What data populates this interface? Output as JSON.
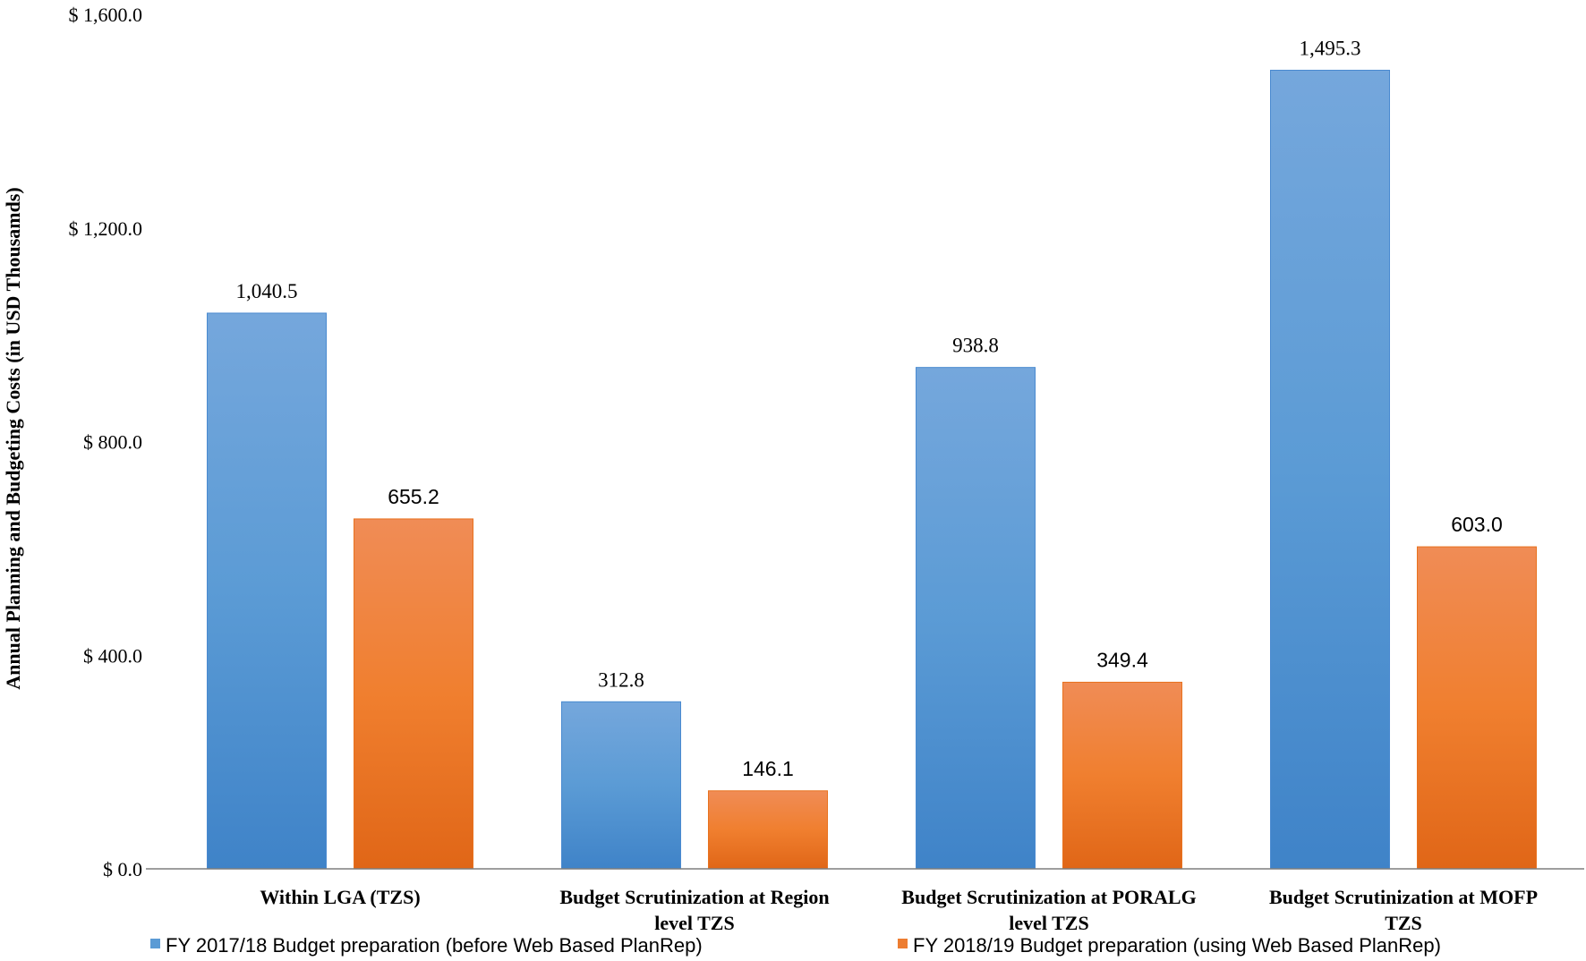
{
  "chart_data": {
    "type": "bar",
    "title": "",
    "xlabel": "",
    "ylabel": "Annual Planning and Budgeting Costs (in USD Thousamds)",
    "ylim": [
      0,
      1600
    ],
    "yticks": [
      0,
      400,
      800,
      1200,
      1600
    ],
    "ytick_labels": [
      "$ 0.0",
      "$ 400.0",
      "$ 800.0",
      "$ 1,200.0",
      "$ 1,600.0"
    ],
    "grid": false,
    "legend_position": "bottom",
    "categories": [
      [
        "Within LGA (TZS)"
      ],
      [
        "Budget Scrutinization at Region",
        "level TZS"
      ],
      [
        "Budget Scrutinization at PORALG",
        "level TZS"
      ],
      [
        "Budget Scrutinization at MOFP",
        "TZS"
      ]
    ],
    "series": [
      {
        "name": "FY 2017/18 Budget preparation (before Web Based PlanRep)",
        "values": [
          1040.5,
          312.8,
          938.8,
          1495.3
        ],
        "labels": [
          "1,040.5",
          "312.8",
          "938.8",
          "1,495.3"
        ],
        "color_top": "#75a7dc",
        "color_mid": "#5b9bd5",
        "color_bottom": "#3f83c8",
        "legend_color": "#5b9bd5"
      },
      {
        "name": "FY 2018/19 Budget preparation (using Web Based PlanRep)",
        "values": [
          655.2,
          146.1,
          349.4,
          603.0
        ],
        "labels": [
          "655.2",
          "146.1",
          "349.4",
          "603.0"
        ],
        "color_top": "#f08c56",
        "color_mid": "#f07f2f",
        "color_bottom": "#e06617",
        "legend_color": "#ed7d31"
      }
    ]
  }
}
